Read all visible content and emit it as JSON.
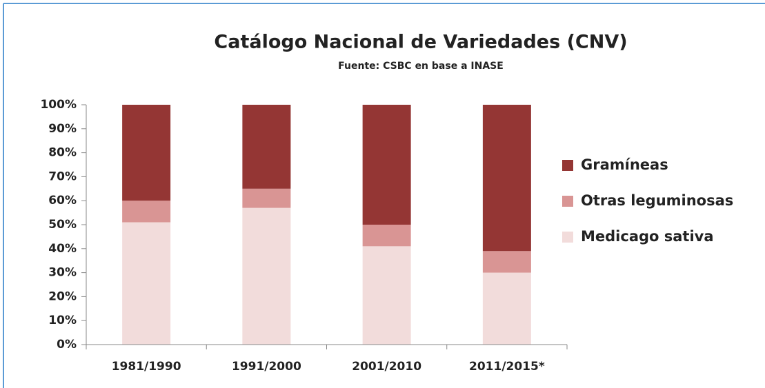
{
  "chart_data": {
    "type": "stacked_bar",
    "title": "Catálogo Nacional de Variedades (CNV)",
    "subtitle": "Fuente: CSBC en base a INASE",
    "categories": [
      "1981/1990",
      "1991/2000",
      "2001/2010",
      "2011/2015*"
    ],
    "series": [
      {
        "name": "Medicago sativa",
        "color": "#f2dcdb",
        "values": [
          51,
          57,
          41,
          30
        ]
      },
      {
        "name": "Otras leguminosas",
        "color": "#d99594",
        "values": [
          9,
          8,
          9,
          9
        ]
      },
      {
        "name": "Gramíneas",
        "color": "#943634",
        "values": [
          40,
          35,
          50,
          61
        ]
      }
    ],
    "ylim": [
      0,
      100
    ],
    "yticks": [
      {
        "value": 0,
        "label": "0%"
      },
      {
        "value": 10,
        "label": "10%"
      },
      {
        "value": 20,
        "label": "20%"
      },
      {
        "value": 30,
        "label": "30%"
      },
      {
        "value": 40,
        "label": "40%"
      },
      {
        "value": 50,
        "label": "50%"
      },
      {
        "value": 60,
        "label": "60%"
      },
      {
        "value": 70,
        "label": "70%"
      },
      {
        "value": 80,
        "label": "80%"
      },
      {
        "value": 90,
        "label": "90%"
      },
      {
        "value": 100,
        "label": "100%"
      }
    ],
    "grid": false,
    "legend": "right"
  }
}
